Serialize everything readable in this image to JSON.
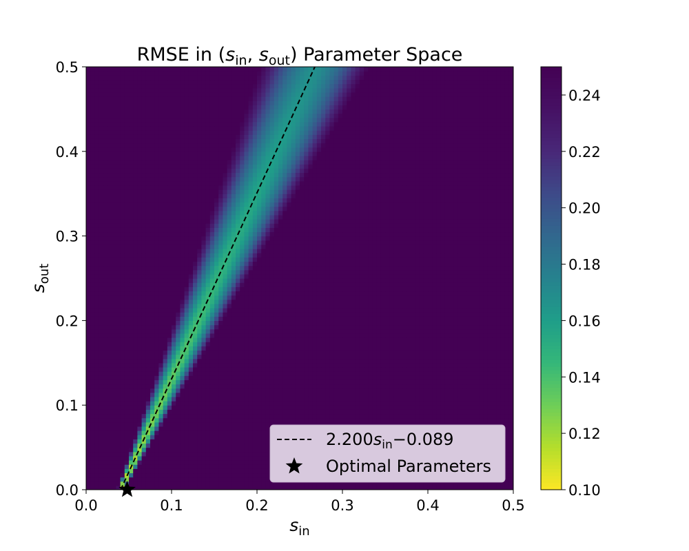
{
  "chart_data": {
    "type": "heatmap",
    "title": {
      "prefix": "RMSE in (",
      "s1": "s",
      "s1_sub": "in",
      "sep": ", ",
      "s2": "s",
      "s2_sub": "out",
      "suffix": ") Parameter Space"
    },
    "xlabel": {
      "main": "s",
      "sub": "in"
    },
    "ylabel": {
      "main": "s",
      "sub": "out"
    },
    "xlim": [
      0.0,
      0.5
    ],
    "ylim": [
      0.0,
      0.5
    ],
    "xticks": [
      "0.0",
      "0.1",
      "0.2",
      "0.3",
      "0.4",
      "0.5"
    ],
    "yticks": [
      "0.0",
      "0.1",
      "0.2",
      "0.3",
      "0.4",
      "0.5"
    ],
    "colorbar": {
      "min": 0.1,
      "max": 0.25,
      "ticks": [
        "0.10",
        "0.12",
        "0.14",
        "0.16",
        "0.18",
        "0.20",
        "0.22",
        "0.24"
      ],
      "colormap": "viridis_r"
    },
    "heatmap_model": {
      "grid_cols": 100,
      "grid_rows": 100,
      "ridge_slope": 2.2,
      "ridge_intercept": -0.089,
      "min_value": 0.1,
      "ridge_value_top": 0.168,
      "cap_value": 0.25,
      "band_width_base": 0.004,
      "band_width_growth": 0.12
    },
    "fit_line": {
      "slope": 2.2,
      "intercept": -0.089,
      "style": "dashed",
      "color": "#000000"
    },
    "optimal_point": {
      "x": 0.048,
      "y": 0.0,
      "marker": "star"
    },
    "legend": {
      "placement": "lower-right",
      "entries": [
        {
          "type": "line",
          "parts": [
            "2.200",
            "s",
            "in",
            "−0.089"
          ]
        },
        {
          "type": "marker",
          "label": "Optimal Parameters"
        }
      ]
    },
    "colors": {
      "legend_bg": "#d8c9de",
      "legend_border": "#c9b8d0"
    }
  }
}
